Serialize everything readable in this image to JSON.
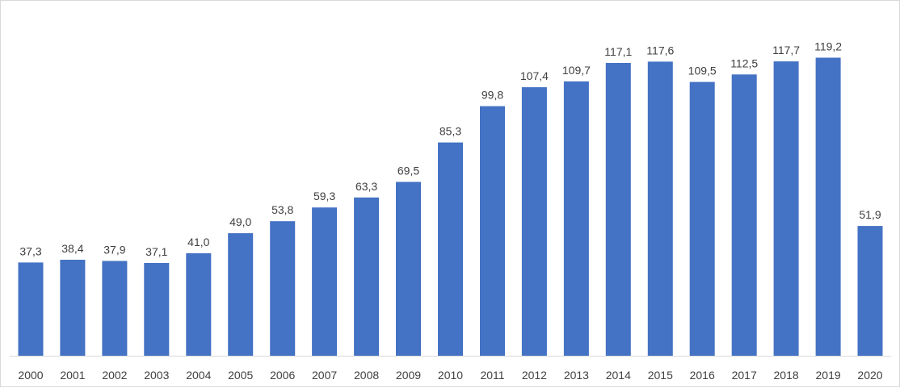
{
  "chart_data": {
    "type": "bar",
    "categories": [
      "2000",
      "2001",
      "2002",
      "2003",
      "2004",
      "2005",
      "2006",
      "2007",
      "2008",
      "2009",
      "2010",
      "2011",
      "2012",
      "2013",
      "2014",
      "2015",
      "2016",
      "2017",
      "2018",
      "2019",
      "2020"
    ],
    "values": [
      37.3,
      38.4,
      37.9,
      37.1,
      41.0,
      49.0,
      53.8,
      59.3,
      63.3,
      69.5,
      85.3,
      99.8,
      107.4,
      109.7,
      117.1,
      117.6,
      109.5,
      112.5,
      117.7,
      119.2,
      51.9
    ],
    "data_labels": [
      "37,3",
      "38,4",
      "37,9",
      "37,1",
      "41,0",
      "49,0",
      "53,8",
      "59,3",
      "63,3",
      "69,5",
      "85,3",
      "99,8",
      "107,4",
      "109,7",
      "117,1",
      "117,6",
      "109,5",
      "112,5",
      "117,7",
      "119,2",
      "51,9"
    ],
    "title": "",
    "xlabel": "",
    "ylabel": "",
    "ylim": [
      0,
      130
    ],
    "grid": false,
    "legend": "none",
    "bar_color": "#4472C4",
    "axis_color": "#d9d9d9",
    "text_color": "#404040"
  }
}
